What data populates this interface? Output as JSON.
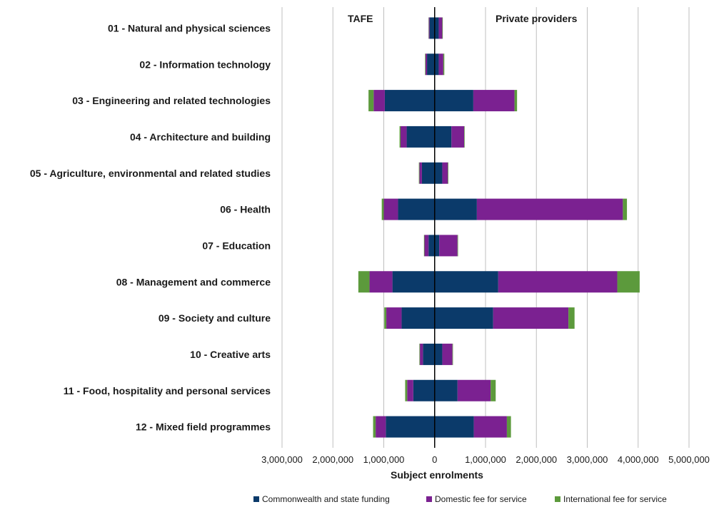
{
  "chart_data": {
    "type": "bar",
    "orientation": "horizontal",
    "stacked": true,
    "diverging": true,
    "side_labels": {
      "left": "TAFE",
      "right": "Private providers"
    },
    "xlabel": "Subject enrolments",
    "xlim": [
      -3000000,
      5000000
    ],
    "x_ticks": [
      -3000000,
      -2000000,
      -1000000,
      0,
      1000000,
      2000000,
      3000000,
      4000000,
      5000000
    ],
    "x_tick_labels": [
      "3,000,000",
      "2,000,000",
      "1,000,000",
      "0",
      "1,000,000",
      "2,000,000",
      "3,000,000",
      "4,000,000",
      "5,000,000"
    ],
    "grid": "vertical",
    "legend_position": "bottom",
    "categories": [
      "01 - Natural and physical sciences",
      "02 - Information technology",
      "03 - Engineering and related technologies",
      "04 - Architecture and building",
      "05 - Agriculture, environmental and related studies",
      "06 - Health",
      "07 - Education",
      "08 - Management and commerce",
      "09 - Society and culture",
      "10 - Creative arts",
      "11 - Food, hospitality and personal services",
      "12 - Mixed field programmes"
    ],
    "series": [
      {
        "name": "Commonwealth and state funding",
        "color": "#0b3a6a",
        "tafe": [
          100000,
          150000,
          980000,
          550000,
          250000,
          720000,
          120000,
          830000,
          650000,
          230000,
          420000,
          960000
        ],
        "private": [
          80000,
          80000,
          760000,
          330000,
          150000,
          830000,
          90000,
          1250000,
          1150000,
          150000,
          450000,
          770000
        ]
      },
      {
        "name": "Domestic fee for service",
        "color": "#7b2191",
        "tafe": [
          15000,
          30000,
          220000,
          120000,
          50000,
          280000,
          80000,
          450000,
          300000,
          60000,
          120000,
          200000
        ],
        "private": [
          70000,
          90000,
          810000,
          250000,
          110000,
          2870000,
          360000,
          2340000,
          1480000,
          200000,
          650000,
          650000
        ]
      },
      {
        "name": "International fee for service",
        "color": "#5c9a3c",
        "tafe": [
          5000,
          10000,
          100000,
          20000,
          10000,
          40000,
          10000,
          220000,
          40000,
          10000,
          40000,
          50000
        ],
        "private": [
          10000,
          20000,
          50000,
          10000,
          10000,
          80000,
          10000,
          440000,
          120000,
          10000,
          100000,
          80000
        ]
      }
    ]
  }
}
